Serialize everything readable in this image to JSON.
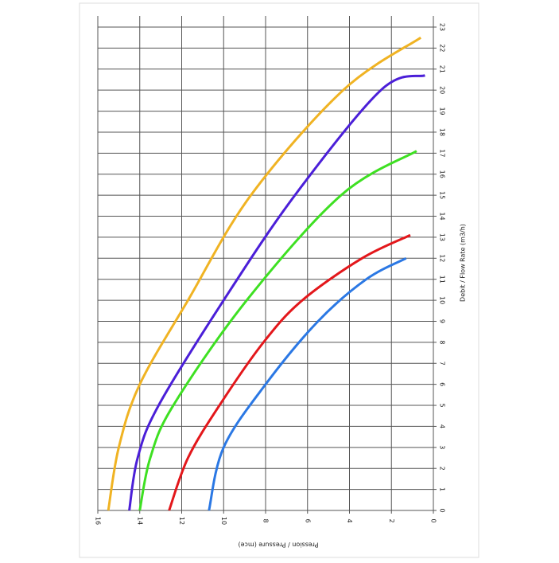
{
  "chart_data": {
    "type": "line",
    "x_label": "Debit / Flow Rate (m3/h)",
    "y_label": "Pression / Pressure (mce)",
    "xlim": [
      0,
      23
    ],
    "xticks": [
      0,
      1,
      2,
      3,
      4,
      5,
      6,
      7,
      8,
      9,
      10,
      11,
      12,
      13,
      14,
      15,
      16,
      17,
      18,
      19,
      20,
      21,
      22,
      23
    ],
    "ylim": [
      0,
      16
    ],
    "yticks": [
      0,
      2,
      4,
      6,
      8,
      10,
      12,
      14,
      16
    ],
    "grid": true,
    "series": [
      {
        "color": "#f0b323",
        "x": [
          0,
          3,
          6,
          10,
          15,
          20,
          22.5
        ],
        "values": [
          15.5,
          15.0,
          14.0,
          11.7,
          8.7,
          4.3,
          0.6
        ]
      },
      {
        "color": "#4b1fd8",
        "x": [
          0,
          2.5,
          5,
          10,
          15,
          20,
          20.7
        ],
        "values": [
          14.5,
          14.1,
          13.1,
          10.0,
          6.6,
          2.5,
          0.4
        ]
      },
      {
        "color": "#3ee022",
        "x": [
          0,
          2.5,
          5,
          10,
          15,
          17.1
        ],
        "values": [
          14.0,
          13.5,
          12.4,
          8.9,
          4.4,
          0.8
        ]
      },
      {
        "color": "#e3171b",
        "x": [
          0,
          2.5,
          5,
          8,
          10,
          12,
          13.1
        ],
        "values": [
          12.6,
          11.7,
          10.2,
          8.1,
          6.25,
          3.4,
          1.1
        ]
      },
      {
        "color": "#2b78e4",
        "x": [
          0,
          3,
          6,
          9,
          11,
          12
        ],
        "values": [
          10.7,
          10.0,
          8.0,
          5.5,
          3.2,
          1.3
        ]
      }
    ]
  }
}
